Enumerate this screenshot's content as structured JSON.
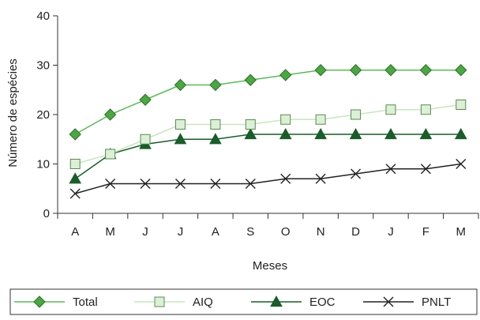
{
  "chart_data": {
    "type": "line",
    "categories": [
      "A",
      "M",
      "J",
      "J",
      "A",
      "S",
      "O",
      "N",
      "D",
      "J",
      "F",
      "M"
    ],
    "xlabel": "Meses",
    "ylabel": "Número de espécies",
    "ylim": [
      0,
      40
    ],
    "yticks": [
      0,
      10,
      20,
      30,
      40
    ],
    "grid": false,
    "legend_position": "bottom",
    "series": [
      {
        "name": "Total",
        "marker": "diamond",
        "color": "#5fb85a",
        "marker_fill": "#4aa843",
        "values": [
          16,
          20,
          23,
          26,
          26,
          27,
          28,
          29,
          29,
          29,
          29,
          29
        ]
      },
      {
        "name": "AIQ",
        "marker": "square",
        "color": "#c8e6c0",
        "marker_fill": "#dcf0d6",
        "marker_stroke": "#5a8a50",
        "values": [
          10,
          12,
          15,
          18,
          18,
          18,
          19,
          19,
          20,
          21,
          21,
          22
        ]
      },
      {
        "name": "EOC",
        "marker": "triangle",
        "color": "#1a5c2a",
        "marker_fill": "#1a5c2a",
        "values": [
          7,
          12,
          14,
          15,
          15,
          16,
          16,
          16,
          16,
          16,
          16,
          16
        ]
      },
      {
        "name": "PNLT",
        "marker": "x",
        "color": "#222222",
        "marker_fill": "none",
        "values": [
          4,
          6,
          6,
          6,
          6,
          6,
          7,
          7,
          8,
          9,
          9,
          10
        ]
      }
    ]
  }
}
